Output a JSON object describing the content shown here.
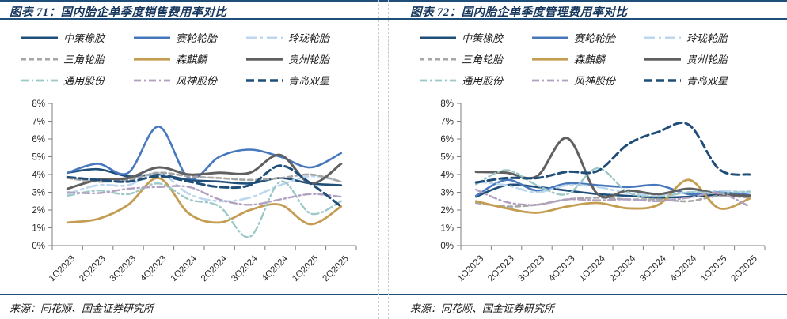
{
  "panels": [
    {
      "title": "图表 71：国内胎企单季度销售费用率对比",
      "source": "来源：同花顺、国金证券研究所",
      "chart_data": {
        "type": "line",
        "title": "国内胎企单季度销售费用率对比",
        "categories": [
          "1Q2023",
          "2Q2023",
          "3Q2023",
          "4Q2023",
          "1Q2024",
          "2Q2024",
          "3Q2024",
          "4Q2024",
          "1Q2025",
          "2Q2025"
        ],
        "ylim": [
          0,
          8
        ],
        "ytick_step": 1,
        "ytick_suffix": "%",
        "grid": false,
        "legend_position": "top",
        "series": [
          {
            "name": "中策橡胶",
            "color": "#1F4E79",
            "dash": "solid",
            "width": 2.6,
            "values": [
              4.1,
              4.3,
              3.9,
              4.0,
              3.7,
              3.6,
              3.5,
              3.8,
              3.5,
              3.4
            ]
          },
          {
            "name": "赛轮轮胎",
            "color": "#4778BE",
            "dash": "solid",
            "width": 2.6,
            "values": [
              4.1,
              4.6,
              4.1,
              6.7,
              3.8,
              5.0,
              5.4,
              5.0,
              4.4,
              5.2
            ]
          },
          {
            "name": "玲珑轮胎",
            "color": "#BDD7EE",
            "dash": "longdashdot",
            "width": 2.6,
            "values": [
              2.9,
              3.4,
              3.4,
              4.1,
              2.9,
              2.5,
              2.7,
              3.4,
              3.9,
              3.6
            ]
          },
          {
            "name": "三角轮胎",
            "color": "#A6A6A6",
            "dash": "dash",
            "width": 2.6,
            "values": [
              3.8,
              3.6,
              3.7,
              4.1,
              3.9,
              3.8,
              3.7,
              3.8,
              4.0,
              3.6
            ]
          },
          {
            "name": "森麒麟",
            "color": "#C49C52",
            "dash": "solid",
            "width": 2.8,
            "values": [
              1.3,
              1.5,
              2.3,
              3.8,
              1.8,
              1.3,
              2.0,
              2.3,
              1.2,
              2.2
            ]
          },
          {
            "name": "贵州轮胎",
            "color": "#606060",
            "dash": "solid",
            "width": 3.0,
            "values": [
              3.2,
              3.7,
              3.8,
              4.4,
              4.0,
              4.1,
              4.1,
              5.1,
              3.5,
              4.6
            ]
          },
          {
            "name": "通用股份",
            "color": "#9CC8C8",
            "dash": "dashdot",
            "width": 2.4,
            "values": [
              2.8,
              3.1,
              2.9,
              3.5,
              2.6,
              2.2,
              0.5,
              3.6,
              1.8,
              2.5
            ]
          },
          {
            "name": "风神股份",
            "color": "#B1A0C0",
            "dash": "dashdot",
            "width": 2.4,
            "values": [
              3.0,
              2.95,
              3.2,
              3.3,
              3.3,
              2.6,
              2.3,
              2.6,
              2.9,
              2.75
            ]
          },
          {
            "name": "青岛双星",
            "color": "#1F4E79",
            "dash": "longdash",
            "width": 3.0,
            "values": [
              3.85,
              3.7,
              3.6,
              3.9,
              3.6,
              3.3,
              3.4,
              4.5,
              3.5,
              2.2
            ]
          }
        ]
      }
    },
    {
      "title": "图表 72：国内胎企单季度管理费用率对比",
      "source": "来源：同花顺、国金证券研究所",
      "chart_data": {
        "type": "line",
        "title": "国内胎企单季度管理费用率对比",
        "categories": [
          "1Q2023",
          "2Q2023",
          "3Q2023",
          "4Q2023",
          "1Q2024",
          "2Q2024",
          "3Q2024",
          "4Q2024",
          "1Q2025",
          "2Q2025"
        ],
        "ylim": [
          0,
          8
        ],
        "ytick_step": 1,
        "ytick_suffix": "%",
        "grid": false,
        "legend_position": "top",
        "series": [
          {
            "name": "中策橡胶",
            "color": "#1F4E79",
            "dash": "solid",
            "width": 2.6,
            "values": [
              2.75,
              3.4,
              3.3,
              3.1,
              2.9,
              2.8,
              2.7,
              2.75,
              2.85,
              2.75
            ]
          },
          {
            "name": "赛轮轮胎",
            "color": "#4778BE",
            "dash": "solid",
            "width": 2.6,
            "values": [
              2.8,
              3.7,
              3.1,
              3.5,
              3.4,
              3.3,
              3.4,
              2.9,
              3.0,
              2.85
            ]
          },
          {
            "name": "玲珑轮胎",
            "color": "#BDD7EE",
            "dash": "longdashdot",
            "width": 2.6,
            "values": [
              3.6,
              3.4,
              3.0,
              3.4,
              3.3,
              2.95,
              2.85,
              3.0,
              3.1,
              3.0
            ]
          },
          {
            "name": "三角轮胎",
            "color": "#A6A6A6",
            "dash": "dash",
            "width": 2.6,
            "values": [
              2.4,
              2.2,
              2.3,
              2.6,
              2.7,
              2.6,
              2.6,
              2.5,
              2.8,
              2.7
            ]
          },
          {
            "name": "森麒麟",
            "color": "#C49C52",
            "dash": "solid",
            "width": 2.8,
            "values": [
              2.5,
              2.1,
              1.85,
              2.2,
              2.4,
              2.1,
              2.3,
              3.7,
              2.1,
              2.65
            ]
          },
          {
            "name": "贵州轮胎",
            "color": "#606060",
            "dash": "solid",
            "width": 3.0,
            "values": [
              4.15,
              4.1,
              3.9,
              6.05,
              2.9,
              3.1,
              2.9,
              3.2,
              2.9,
              2.8
            ]
          },
          {
            "name": "通用股份",
            "color": "#9CC8C8",
            "dash": "dashdot",
            "width": 2.4,
            "values": [
              3.45,
              4.25,
              3.4,
              2.9,
              4.35,
              3.0,
              2.75,
              3.0,
              2.95,
              3.05
            ]
          },
          {
            "name": "风神股份",
            "color": "#B1A0C0",
            "dash": "dashdot",
            "width": 2.4,
            "values": [
              3.15,
              2.45,
              2.3,
              2.6,
              2.55,
              2.6,
              2.5,
              2.7,
              2.95,
              2.2
            ]
          },
          {
            "name": "青岛双星",
            "color": "#1F4E79",
            "dash": "longdash",
            "width": 3.0,
            "values": [
              3.55,
              3.8,
              3.8,
              4.15,
              4.2,
              5.7,
              6.4,
              6.8,
              4.3,
              4.0
            ]
          }
        ]
      }
    }
  ],
  "colors": {
    "rule_navy": "#1F4E79",
    "title_navy": "#16365C",
    "divider_gray": "#C9C9C9",
    "axis_gray": "#7F7F7F",
    "tick_label": "#262626"
  }
}
